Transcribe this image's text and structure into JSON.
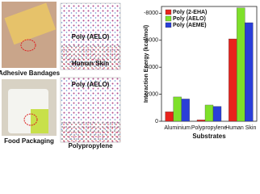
{
  "photos": [
    {
      "label": "Adhesive Bandages"
    },
    {
      "label": "Food Packaging"
    }
  ],
  "simulations": [
    {
      "polymer": "Poly (AELO)",
      "substrate": "Human Skin"
    },
    {
      "polymer": "Poly (AELO)",
      "substrate": "Polypropylene"
    }
  ],
  "chart_data": {
    "type": "bar",
    "x_label": "Substrates",
    "y_label": "Interaction Energy (kcal/mol)",
    "categories": [
      "Aluminium",
      "Polypropylene",
      "Human Skin"
    ],
    "series": [
      {
        "name": "Poly (2-EHA)",
        "color": "#e8231c",
        "values": [
          -700,
          -100,
          -6100
        ]
      },
      {
        "name": "Poly (AELO)",
        "color": "#7ee02a",
        "values": [
          -1800,
          -1200,
          -8400
        ]
      },
      {
        "name": "Poly (AEME)",
        "color": "#2a3fd8",
        "values": [
          -1650,
          -1100,
          -7300
        ]
      }
    ],
    "ylim": [
      0,
      -8500
    ],
    "yticks": [
      0,
      -2000,
      -4000,
      -6000,
      -8000
    ],
    "legend": "upper-left"
  }
}
